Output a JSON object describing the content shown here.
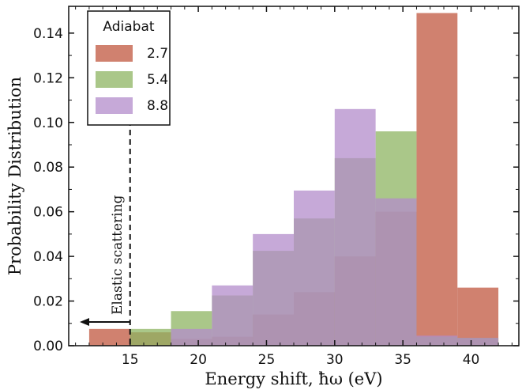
{
  "chart_data": {
    "type": "bar",
    "subtype": "overlapping-histogram",
    "xlabel": "Energy shift, ħω (eV)",
    "ylabel": "Probability Distribution",
    "xlim": [
      10.5,
      43.5
    ],
    "ylim": [
      0,
      0.152
    ],
    "xticks": [
      15,
      20,
      25,
      30,
      35,
      40
    ],
    "yticks": [
      0.0,
      0.02,
      0.04,
      0.06,
      0.08,
      0.1,
      0.12,
      0.14
    ],
    "ytick_labels": [
      "0.00",
      "0.02",
      "0.04",
      "0.06",
      "0.08",
      "0.10",
      "0.12",
      "0.14"
    ],
    "bin_edges": [
      12,
      15,
      18,
      21,
      24,
      27,
      30,
      33,
      36,
      39,
      42
    ],
    "legend": {
      "title": "Adiabat",
      "position": "top-left"
    },
    "series": [
      {
        "name": "2.7",
        "color": "#c0573f",
        "values": [
          0.0075,
          0.006,
          0.003,
          0.004,
          0.014,
          0.024,
          0.04,
          0.06,
          0.149,
          0.026
        ]
      },
      {
        "name": "5.4",
        "color": "#8db461",
        "values": [
          0.0,
          0.0075,
          0.0155,
          0.0225,
          0.0425,
          0.057,
          0.084,
          0.096,
          0.004,
          0.0035
        ]
      },
      {
        "name": "8.8",
        "color": "#b38ccb",
        "values": [
          0.0,
          0.0,
          0.0075,
          0.027,
          0.05,
          0.0695,
          0.106,
          0.066,
          0.0045,
          0.0035
        ]
      }
    ],
    "annotations": [
      {
        "text": "Elastic scattering",
        "x": 15,
        "style": "dashed vertical line with left arrow"
      }
    ],
    "grid": false
  }
}
